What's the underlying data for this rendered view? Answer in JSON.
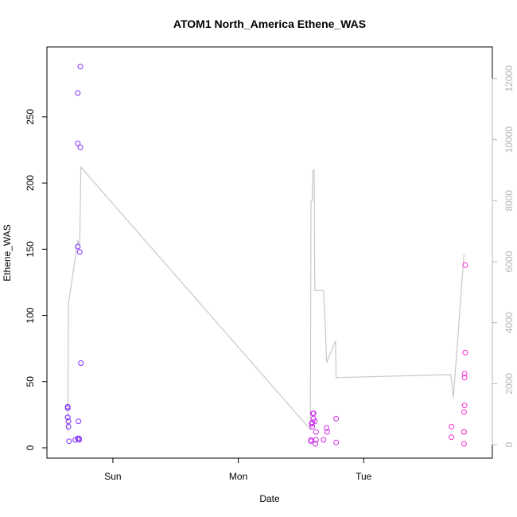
{
  "chart_data": {
    "type": "scatter",
    "title": "ATOM1 North_America Ethene_WAS",
    "xlabel": "Date",
    "ylabel": "Ethene_WAS",
    "x_ticks": [
      "Sun",
      "Mon",
      "Tue"
    ],
    "x_tick_values": [
      1.0,
      2.0,
      3.0
    ],
    "xlim": [
      0.55,
      3.95
    ],
    "ylim": [
      0,
      295
    ],
    "y_ticks": [
      0,
      50,
      100,
      150,
      200,
      250
    ],
    "y2lim": [
      -100,
      12700
    ],
    "y2_ticks": [
      0,
      2000,
      4000,
      6000,
      8000,
      10000,
      12000
    ],
    "colors": {
      "start": "#7b2cff",
      "end": "#ff2bd5",
      "line": "#c8c8c8",
      "axis": "#000000",
      "right_axis": "#b5b5b5"
    },
    "points": [
      {
        "x": 0.64,
        "y": 31
      },
      {
        "x": 0.64,
        "y": 30
      },
      {
        "x": 0.64,
        "y": 23
      },
      {
        "x": 0.64,
        "y": 23
      },
      {
        "x": 0.645,
        "y": 20
      },
      {
        "x": 0.645,
        "y": 16
      },
      {
        "x": 0.65,
        "y": 5
      },
      {
        "x": 0.7,
        "y": 6
      },
      {
        "x": 0.72,
        "y": 268
      },
      {
        "x": 0.72,
        "y": 230
      },
      {
        "x": 0.72,
        "y": 152
      },
      {
        "x": 0.72,
        "y": 7
      },
      {
        "x": 0.725,
        "y": 20
      },
      {
        "x": 0.73,
        "y": 6
      },
      {
        "x": 0.73,
        "y": 7
      },
      {
        "x": 0.735,
        "y": 148
      },
      {
        "x": 0.74,
        "y": 227
      },
      {
        "x": 0.74,
        "y": 288
      },
      {
        "x": 0.745,
        "y": 64
      },
      {
        "x": 2.58,
        "y": 5
      },
      {
        "x": 2.58,
        "y": 6
      },
      {
        "x": 2.585,
        "y": 18
      },
      {
        "x": 2.59,
        "y": 19
      },
      {
        "x": 2.59,
        "y": 16
      },
      {
        "x": 2.595,
        "y": 26
      },
      {
        "x": 2.6,
        "y": 26
      },
      {
        "x": 2.6,
        "y": 22
      },
      {
        "x": 2.61,
        "y": 20
      },
      {
        "x": 2.615,
        "y": 3
      },
      {
        "x": 2.62,
        "y": 12
      },
      {
        "x": 2.62,
        "y": 6
      },
      {
        "x": 2.68,
        "y": 6
      },
      {
        "x": 2.705,
        "y": 15
      },
      {
        "x": 2.71,
        "y": 12
      },
      {
        "x": 2.78,
        "y": 4
      },
      {
        "x": 2.78,
        "y": 22
      },
      {
        "x": 3.7,
        "y": 16
      },
      {
        "x": 3.7,
        "y": 8
      },
      {
        "x": 3.8,
        "y": 3
      },
      {
        "x": 3.8,
        "y": 12
      },
      {
        "x": 3.8,
        "y": 12
      },
      {
        "x": 3.8,
        "y": 27
      },
      {
        "x": 3.805,
        "y": 32
      },
      {
        "x": 3.805,
        "y": 53
      },
      {
        "x": 3.805,
        "y": 56
      },
      {
        "x": 3.81,
        "y": 72
      },
      {
        "x": 3.81,
        "y": 138
      }
    ],
    "line_series": {
      "axis": "right",
      "points": [
        {
          "x": 0.64,
          "y": 400
        },
        {
          "x": 0.645,
          "y": 4600
        },
        {
          "x": 0.72,
          "y": 6700
        },
        {
          "x": 0.735,
          "y": 6500
        },
        {
          "x": 0.745,
          "y": 9100
        },
        {
          "x": 2.575,
          "y": 500
        },
        {
          "x": 2.58,
          "y": 8000
        },
        {
          "x": 2.59,
          "y": 8000
        },
        {
          "x": 2.595,
          "y": 9000
        },
        {
          "x": 2.605,
          "y": 9000
        },
        {
          "x": 2.61,
          "y": 5050
        },
        {
          "x": 2.68,
          "y": 5050
        },
        {
          "x": 2.695,
          "y": 3750
        },
        {
          "x": 2.705,
          "y": 2700
        },
        {
          "x": 2.775,
          "y": 3400
        },
        {
          "x": 2.78,
          "y": 2200
        },
        {
          "x": 3.695,
          "y": 2300
        },
        {
          "x": 3.715,
          "y": 1550
        },
        {
          "x": 3.8,
          "y": 6250
        }
      ]
    }
  }
}
